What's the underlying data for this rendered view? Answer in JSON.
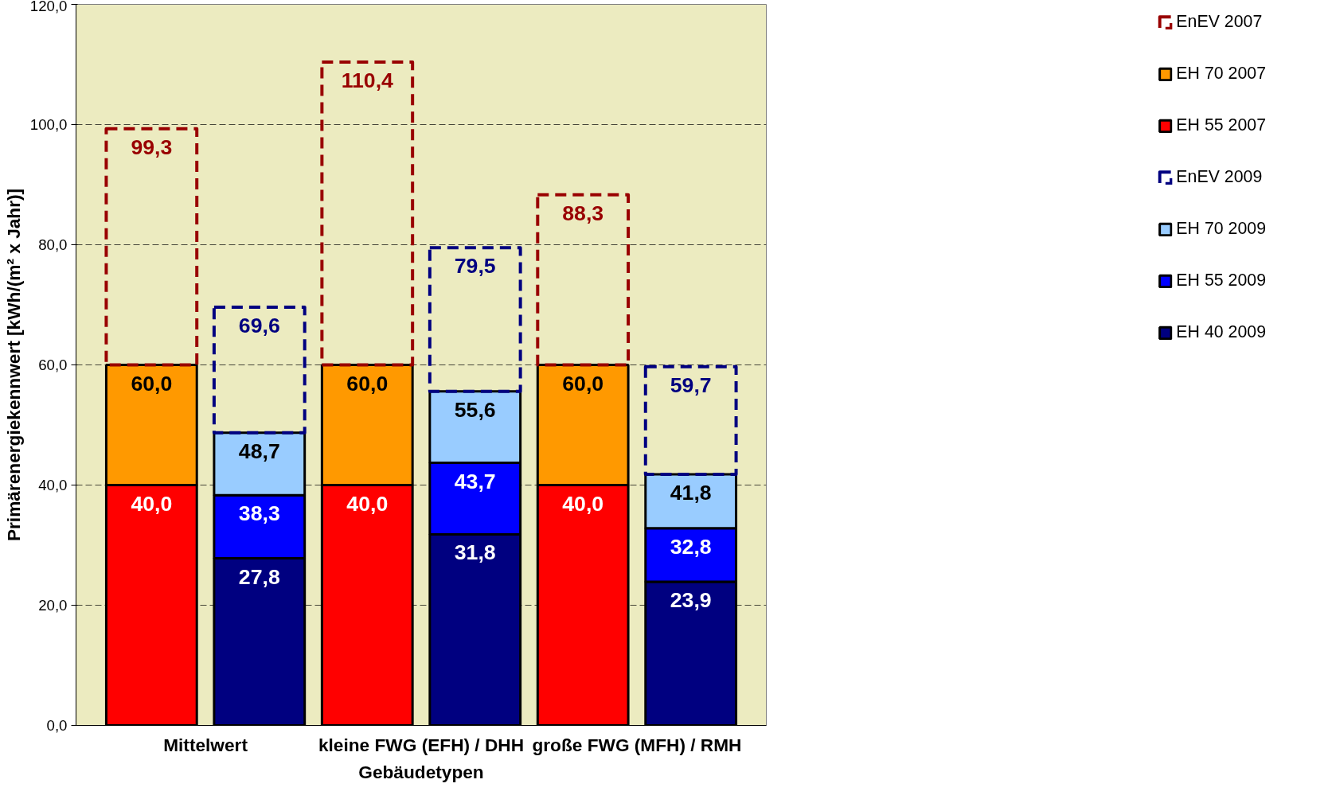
{
  "chart_data": {
    "type": "bar",
    "stacked": true,
    "xlabel": "Gebäudetypen",
    "ylabel": "Primärenergiekennwert [kWh/(m² x Jahr)]",
    "categories": [
      "Mittelwert",
      null,
      "kleine FWG (EFH) / DHH",
      null,
      "große FWG (MFH) / RMH",
      null
    ],
    "ylim": [
      0,
      120
    ],
    "yticks": [
      {
        "value": 0,
        "label": "0,0"
      },
      {
        "value": 20,
        "label": "20,0"
      },
      {
        "value": 40,
        "label": "40,0"
      },
      {
        "value": 60,
        "label": "60,0"
      },
      {
        "value": 80,
        "label": "80,0"
      },
      {
        "value": 100,
        "label": "100,0"
      },
      {
        "value": 120,
        "label": "120,0"
      }
    ],
    "grid": "y",
    "legend": "right",
    "series": [
      {
        "name": "EH 55 2007",
        "color": "#ff0000",
        "values": [
          40.0,
          null,
          40.0,
          null,
          40.0,
          null
        ]
      },
      {
        "name": "EH 70 2007",
        "color": "#ff9900",
        "values": [
          20.0,
          null,
          20.0,
          null,
          20.0,
          null
        ]
      },
      {
        "name": "EnEV 2007",
        "color": "#990000",
        "line_style": "dashed",
        "values": [
          39.3,
          null,
          50.4,
          null,
          28.3,
          null
        ]
      },
      {
        "name": "EH 40 2009",
        "color": "#000080",
        "values": [
          null,
          27.8,
          null,
          31.8,
          null,
          23.9
        ]
      },
      {
        "name": "EH 55 2009",
        "color": "#0000ff",
        "values": [
          null,
          10.5,
          null,
          11.9,
          null,
          8.9
        ]
      },
      {
        "name": "EH 70 2009",
        "color": "#99ccff",
        "values": [
          null,
          10.4,
          null,
          11.9,
          null,
          9.0
        ]
      },
      {
        "name": "EnEV 2009",
        "color": "#000080",
        "line_style": "dashed",
        "values": [
          null,
          20.9,
          null,
          23.9,
          null,
          17.9
        ]
      }
    ],
    "annotations": [
      "40,0",
      "60,0",
      "99,3",
      "27,8",
      "38,3",
      "48,7",
      "69,6",
      "40,0",
      "60,0",
      "110,4",
      "31,8",
      "43,7",
      "55,6",
      "79,5",
      "40,0",
      "60,0",
      "88,3",
      "23,9",
      "32,8",
      "41,8",
      "59,7"
    ]
  }
}
